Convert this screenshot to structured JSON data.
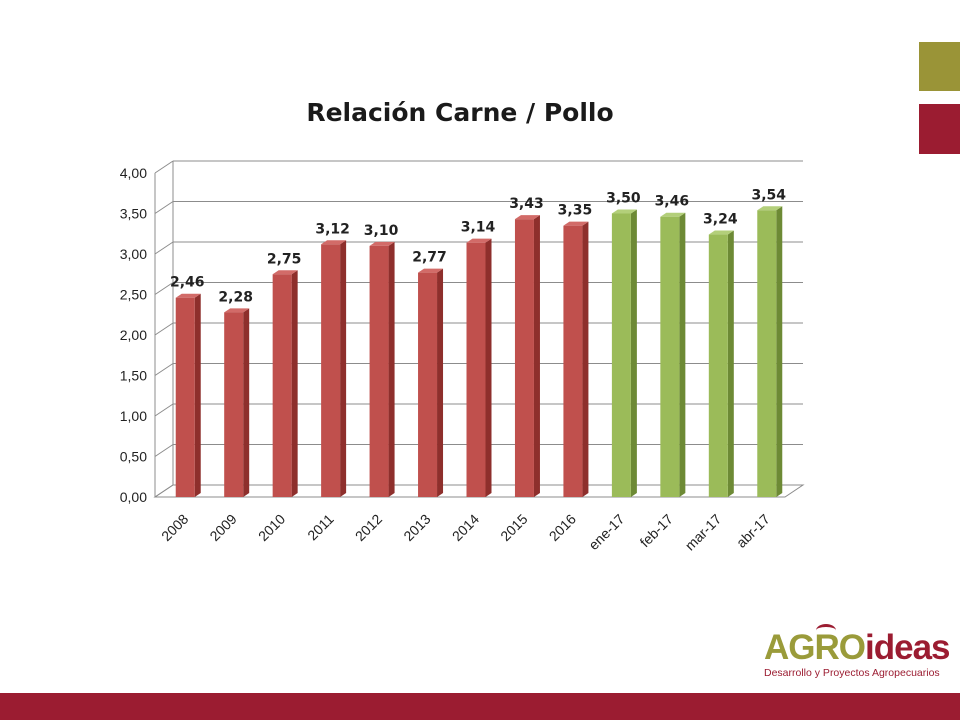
{
  "colors": {
    "accent_olive": "#9a9437",
    "accent_red": "#9b1c31",
    "bar_red": "#c0504d",
    "bar_green": "#9bbb59",
    "footer": "#9b1c31"
  },
  "chart_data": {
    "type": "bar",
    "title": "Relación Carne / Pollo",
    "categories": [
      "2008",
      "2009",
      "2010",
      "2011",
      "2012",
      "2013",
      "2014",
      "2015",
      "2016",
      "ene-17",
      "feb-17",
      "mar-17",
      "abr-17"
    ],
    "values": [
      2.46,
      2.28,
      2.75,
      3.12,
      3.1,
      2.77,
      3.14,
      3.43,
      3.35,
      3.5,
      3.46,
      3.24,
      3.54
    ],
    "value_labels": [
      "2,46",
      "2,28",
      "2,75",
      "3,12",
      "3,10",
      "2,77",
      "3,14",
      "3,43",
      "3,35",
      "3,50",
      "3,46",
      "3,24",
      "3,54"
    ],
    "bar_colors": [
      "red",
      "red",
      "red",
      "red",
      "red",
      "red",
      "red",
      "red",
      "red",
      "green",
      "green",
      "green",
      "green"
    ],
    "y_ticks": [
      "0,00",
      "0,50",
      "1,00",
      "1,50",
      "2,00",
      "2,50",
      "3,00",
      "3,50",
      "4,00"
    ],
    "ylim": [
      0,
      4
    ],
    "grid": true,
    "legend": "none",
    "style": "3d-column"
  },
  "logo": {
    "agro": "AGRO",
    "ideas": "ideas",
    "tagline": "Desarrollo y Proyectos Agropecuarios"
  }
}
